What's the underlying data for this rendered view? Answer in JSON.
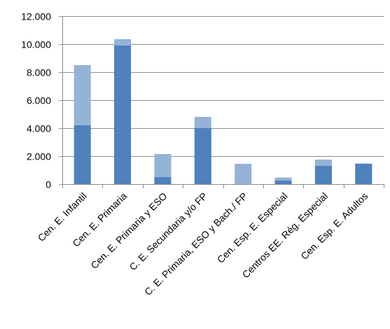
{
  "chart_data": {
    "type": "bar",
    "stacked": true,
    "categories": [
      "Cen. E. Infantil",
      "Cen. E. Primaria",
      "Cen. E. Primaria y ESO",
      "C. E. Secundaria y/o FP",
      "C. E. Primaria, ESO y Bach./ FP",
      "Cen. Esp. E. Especial",
      "Centros EE. Rég. Especial",
      "Cen. Esp. E. Adultos"
    ],
    "series": [
      {
        "color": "#4f81bd",
        "values": [
          4200,
          9900,
          500,
          4000,
          0,
          250,
          1300,
          1450
        ]
      },
      {
        "color": "#95b3d7",
        "values": [
          4300,
          450,
          1650,
          800,
          1450,
          220,
          450,
          20
        ]
      }
    ],
    "ylim": [
      0,
      12000
    ],
    "yticks": [
      0,
      2000,
      4000,
      6000,
      8000,
      10000,
      12000
    ],
    "ytick_labels": [
      "0",
      "2.000",
      "4.000",
      "6.000",
      "8.000",
      "10.000",
      "12.000"
    ],
    "grid": true,
    "legend": "none",
    "title": "",
    "xlabel": "",
    "ylabel": ""
  }
}
